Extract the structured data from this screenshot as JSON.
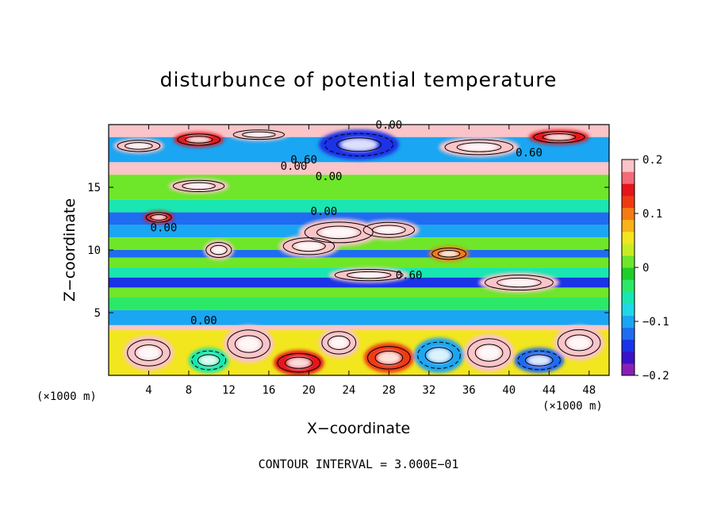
{
  "chart_data": {
    "type": "heatmap",
    "title": "disturbunce of potential temperature",
    "xlabel": "X−coordinate",
    "ylabel": "Z−coordinate",
    "x_unit_left": "(×1000 m)",
    "x_unit_right": "(×1000 m)",
    "xlim": [
      0,
      50
    ],
    "ylim": [
      0,
      20
    ],
    "x_ticks": [
      4,
      8,
      12,
      16,
      20,
      24,
      28,
      32,
      36,
      40,
      44,
      48
    ],
    "x_tick_labels": [
      "4",
      "8",
      "12",
      "16",
      "20",
      "24",
      "28",
      "32",
      "36",
      "40",
      "44",
      "48"
    ],
    "y_ticks": [
      5,
      10,
      15
    ],
    "y_tick_labels": [
      "5",
      "10",
      "15"
    ],
    "colorbar": {
      "range": [
        -0.2,
        0.2
      ],
      "tick_values": [
        0.2,
        0.1,
        0,
        -0.1,
        -0.2
      ],
      "tick_labels": [
        "0.2",
        "0.1",
        "0",
        "−0.1",
        "−0.2"
      ],
      "colors": [
        "#8a1fb8",
        "#3a12c8",
        "#1a33e6",
        "#1f6cf0",
        "#1aa6f2",
        "#1fd8e6",
        "#19e6b0",
        "#2be866",
        "#1ecf2a",
        "#6ee62a",
        "#c8ec22",
        "#f2e61e",
        "#f8b21a",
        "#f57a14",
        "#ee3b13",
        "#e6141b",
        "#f36a78",
        "#fbc4c8"
      ]
    },
    "bands": [
      {
        "z": [
          19.0,
          20.0
        ],
        "value": 0.2
      },
      {
        "z": [
          17.0,
          19.0
        ],
        "value": -0.1
      },
      {
        "z": [
          16.0,
          17.0
        ],
        "value": 0.2
      },
      {
        "z": [
          15.0,
          16.0
        ],
        "value": 0.0
      },
      {
        "z": [
          14.0,
          15.0
        ],
        "value": 0.02
      },
      {
        "z": [
          13.0,
          14.0
        ],
        "value": -0.05
      },
      {
        "z": [
          12.0,
          13.0
        ],
        "value": -0.12
      },
      {
        "z": [
          11.0,
          12.0
        ],
        "value": -0.09
      },
      {
        "z": [
          10.0,
          11.0
        ],
        "value": 0.0
      },
      {
        "z": [
          9.4,
          10.0
        ],
        "value": -0.13
      },
      {
        "z": [
          8.6,
          9.4
        ],
        "value": 0.0
      },
      {
        "z": [
          7.8,
          8.6
        ],
        "value": -0.06
      },
      {
        "z": [
          7.0,
          7.8
        ],
        "value": -0.15
      },
      {
        "z": [
          6.2,
          7.0
        ],
        "value": 0.01
      },
      {
        "z": [
          5.2,
          6.2
        ],
        "value": -0.03
      },
      {
        "z": [
          4.0,
          5.2
        ],
        "value": -0.11
      },
      {
        "z": [
          3.6,
          4.0
        ],
        "value": 0.2
      },
      {
        "z": [
          0.0,
          3.6
        ],
        "value": 0.05
      }
    ],
    "patches": [
      {
        "x": 3,
        "z": 18.3,
        "rx": 2.5,
        "rz": 0.6,
        "value": 0.2
      },
      {
        "x": 9,
        "z": 18.8,
        "rx": 2.5,
        "rz": 0.6,
        "value": 0.15
      },
      {
        "x": 15,
        "z": 19.2,
        "rx": 3,
        "rz": 0.5,
        "value": 0.2
      },
      {
        "x": 25,
        "z": 18.4,
        "rx": 4,
        "rz": 1.2,
        "value": -0.15
      },
      {
        "x": 37,
        "z": 18.2,
        "rx": 4,
        "rz": 0.8,
        "value": 0.2
      },
      {
        "x": 45,
        "z": 19.0,
        "rx": 3,
        "rz": 0.6,
        "value": 0.15
      },
      {
        "x": 23,
        "z": 11.4,
        "rx": 4,
        "rz": 1.1,
        "value": 0.2
      },
      {
        "x": 20,
        "z": 10.3,
        "rx": 3,
        "rz": 0.9,
        "value": 0.2
      },
      {
        "x": 28,
        "z": 11.6,
        "rx": 3,
        "rz": 0.8,
        "value": 0.2
      },
      {
        "x": 26,
        "z": 8.0,
        "rx": 4,
        "rz": 0.6,
        "value": 0.2
      },
      {
        "x": 34,
        "z": 9.7,
        "rx": 2,
        "rz": 0.6,
        "value": 0.1
      },
      {
        "x": 41,
        "z": 7.4,
        "rx": 4,
        "rz": 0.8,
        "value": 0.2
      },
      {
        "x": 11,
        "z": 10.0,
        "rx": 1.5,
        "rz": 0.8,
        "value": 0.2
      },
      {
        "x": 5,
        "z": 12.6,
        "rx": 1.5,
        "rz": 0.5,
        "value": 0.15
      },
      {
        "x": 9,
        "z": 15.1,
        "rx": 3,
        "rz": 0.6,
        "value": 0.2
      },
      {
        "x": 4,
        "z": 1.8,
        "rx": 2.5,
        "rz": 1.4,
        "value": 0.2
      },
      {
        "x": 10,
        "z": 1.2,
        "rx": 2,
        "rz": 1.0,
        "value": -0.05
      },
      {
        "x": 14,
        "z": 2.5,
        "rx": 2.5,
        "rz": 1.5,
        "value": 0.2
      },
      {
        "x": 19,
        "z": 1.0,
        "rx": 2.5,
        "rz": 1.0,
        "value": 0.15
      },
      {
        "x": 23,
        "z": 2.6,
        "rx": 2,
        "rz": 1.2,
        "value": 0.2
      },
      {
        "x": 28,
        "z": 1.4,
        "rx": 2.5,
        "rz": 1.2,
        "value": 0.12
      },
      {
        "x": 33,
        "z": 1.6,
        "rx": 2.5,
        "rz": 1.4,
        "value": -0.1
      },
      {
        "x": 38,
        "z": 1.8,
        "rx": 2.5,
        "rz": 1.5,
        "value": 0.2
      },
      {
        "x": 43,
        "z": 1.2,
        "rx": 2.5,
        "rz": 1.0,
        "value": -0.12
      },
      {
        "x": 47,
        "z": 2.6,
        "rx": 2.5,
        "rz": 1.4,
        "value": 0.2
      }
    ],
    "contour_labels": [
      {
        "x": 28,
        "z": 20.0,
        "text": "0.00"
      },
      {
        "x": 19.5,
        "z": 17.2,
        "text": "0.60"
      },
      {
        "x": 18.5,
        "z": 16.7,
        "text": "0.00"
      },
      {
        "x": 22,
        "z": 15.9,
        "text": "0.00"
      },
      {
        "x": 42,
        "z": 17.8,
        "text": "0.60"
      },
      {
        "x": 21.5,
        "z": 13.1,
        "text": "0.00"
      },
      {
        "x": 5.5,
        "z": 11.8,
        "text": "0.00"
      },
      {
        "x": 30,
        "z": 8.0,
        "text": "0.60"
      },
      {
        "x": 9.5,
        "z": 4.4,
        "text": "0.00"
      }
    ],
    "annotation": "CONTOUR INTERVAL = 3.000E−01"
  }
}
